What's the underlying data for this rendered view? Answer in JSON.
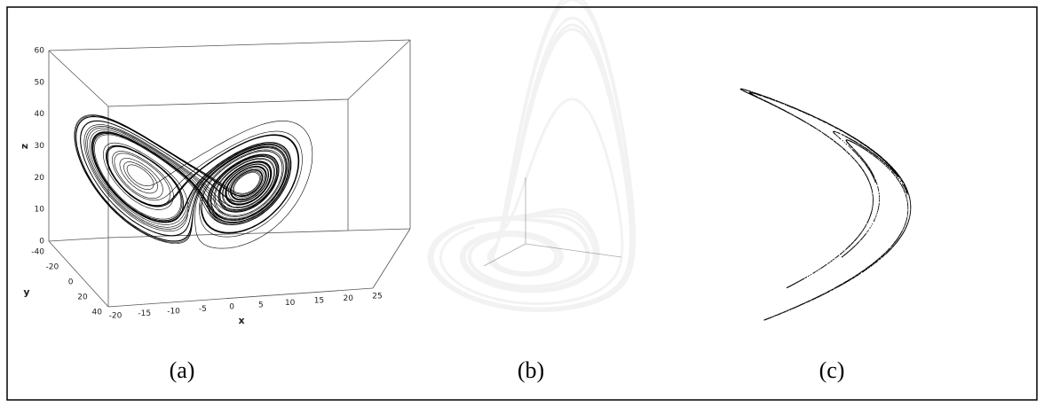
{
  "panels": [
    {
      "caption": "(a)",
      "axes": {
        "z": {
          "label": "z",
          "ticks": [
            0,
            10,
            20,
            30,
            40,
            50,
            60
          ]
        },
        "y": {
          "label": "y",
          "ticks": [
            -40,
            -20,
            0,
            20,
            40
          ]
        },
        "x": {
          "label": "x",
          "ticks": [
            -20,
            -15,
            -10,
            -5,
            0,
            5,
            10,
            15,
            20,
            25
          ]
        }
      }
    },
    {
      "caption": "(b)"
    },
    {
      "caption": "(c)"
    }
  ]
}
